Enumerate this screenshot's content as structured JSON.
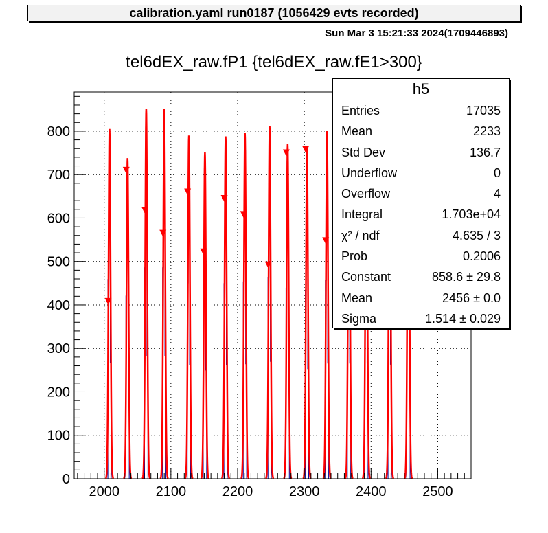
{
  "header": {
    "banner": "calibration.yaml  run0187 (1056429 evts recorded)",
    "datestamp": "Sun Mar  3 15:21:33 2024(1709446893)"
  },
  "colors": {
    "histogram": "#000099",
    "fit": "#ff0000",
    "frame": "#000000",
    "grid": "#000000"
  },
  "stats": {
    "title": "h5",
    "rows": [
      {
        "label": "Entries",
        "value": "17035"
      },
      {
        "label": "Mean",
        "value": "2233"
      },
      {
        "label": "Std Dev",
        "value": "136.7"
      },
      {
        "label": "Underflow",
        "value": "0"
      },
      {
        "label": "Overflow",
        "value": "4"
      },
      {
        "label": "Integral",
        "value": "1.703e+04"
      },
      {
        "label": "χ² / ndf",
        "value": "4.635 / 3"
      },
      {
        "label": "Prob",
        "value": "0.2006"
      },
      {
        "label": "Constant",
        "value": "858.6 ± 29.8"
      },
      {
        "label": "Mean",
        "value": "2456 ± 0.0"
      },
      {
        "label": "Sigma",
        "value": "1.514 ± 0.029"
      }
    ]
  },
  "chart_data": {
    "type": "bar",
    "title": "tel6dEX_raw.fP1 {tel6dEX_raw.fE1>300}",
    "xlim": [
      1955,
      2550
    ],
    "ylim": [
      0,
      890
    ],
    "xticks": [
      2000,
      2100,
      2200,
      2300,
      2400,
      2500
    ],
    "yticks": [
      0,
      100,
      200,
      300,
      400,
      500,
      600,
      700,
      800
    ],
    "grid": true,
    "legend": "top-right",
    "peaks": [
      {
        "center": 2008,
        "height": 805,
        "marker": 408
      },
      {
        "center": 2035,
        "height": 738,
        "marker": 710
      },
      {
        "center": 2063,
        "height": 852,
        "marker": 618
      },
      {
        "center": 2090,
        "height": 852,
        "marker": 565
      },
      {
        "center": 2127,
        "height": 790,
        "marker": 660
      },
      {
        "center": 2151,
        "height": 752,
        "marker": 522
      },
      {
        "center": 2182,
        "height": 788,
        "marker": 645
      },
      {
        "center": 2211,
        "height": 795,
        "marker": 608
      },
      {
        "center": 2248,
        "height": 812,
        "marker": 492
      },
      {
        "center": 2275,
        "height": 770,
        "marker": 750
      },
      {
        "center": 2304,
        "height": 762,
        "marker": 758
      },
      {
        "center": 2334,
        "height": 800,
        "marker": 548
      },
      {
        "center": 2367,
        "height": 800,
        "marker": 0
      },
      {
        "center": 2393,
        "height": 800,
        "marker": 0
      },
      {
        "center": 2428,
        "height": 792,
        "marker": 0
      },
      {
        "center": 2456,
        "height": 858,
        "marker": 0
      }
    ]
  }
}
